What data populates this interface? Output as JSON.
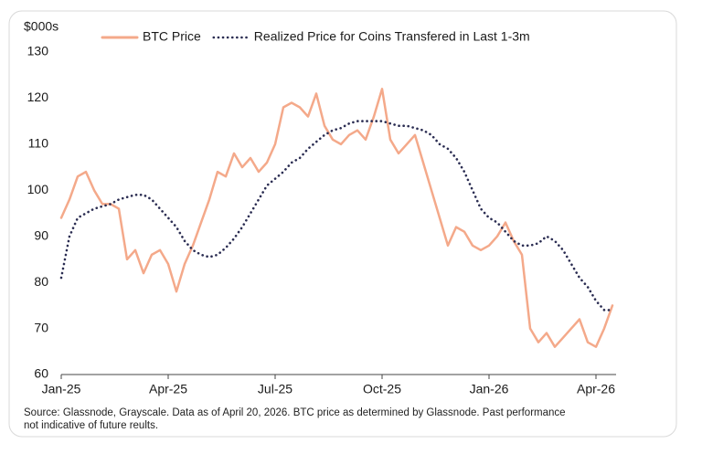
{
  "chart_data": {
    "type": "line",
    "y_label": "$000s",
    "source": [
      "Source: Glassnode, Grayscale. Data as of April 20, 2026. BTC price as determined by Glassnode. Past performance",
      "not indicative of future reults."
    ],
    "categories": [
      "Jan-25",
      null,
      null,
      null,
      null,
      null,
      null,
      null,
      null,
      null,
      null,
      null,
      null,
      "Apr-25",
      null,
      null,
      null,
      null,
      null,
      null,
      null,
      null,
      null,
      null,
      null,
      null,
      "Jul-25",
      null,
      null,
      null,
      null,
      null,
      null,
      null,
      null,
      null,
      null,
      null,
      null,
      "Oct-25",
      null,
      null,
      null,
      null,
      null,
      null,
      null,
      null,
      null,
      null,
      null,
      null,
      "Jan-26",
      null,
      null,
      null,
      null,
      null,
      null,
      null,
      null,
      null,
      null,
      null,
      null,
      "Apr-26",
      null,
      null
    ],
    "series": [
      {
        "name": "BTC Price",
        "color": "#f4a98a",
        "style": "solid",
        "values": [
          94,
          98,
          103,
          104,
          100,
          97,
          97,
          96,
          85,
          87,
          82,
          86,
          87,
          84,
          78,
          84,
          88,
          93,
          98,
          104,
          103,
          108,
          105,
          107,
          104,
          106,
          110,
          118,
          119,
          118,
          116,
          121,
          114,
          111,
          110,
          112,
          113,
          111,
          116,
          122,
          111,
          108,
          110,
          112,
          106,
          100,
          94,
          88,
          92,
          91,
          88,
          87,
          88,
          90,
          93,
          89,
          86,
          70,
          67,
          69,
          66,
          68,
          70,
          72,
          67,
          66,
          70,
          75
        ]
      },
      {
        "name": "Realized Price for Coins Transfered in Last 1-3m",
        "color": "#2b2d52",
        "style": "dotted",
        "values": [
          81,
          90,
          94,
          95,
          96,
          96.5,
          97,
          98,
          98.5,
          99,
          99,
          98,
          96,
          94,
          92,
          89,
          87,
          86,
          85.5,
          86,
          87.5,
          89.5,
          92,
          95,
          98,
          101,
          102.5,
          104,
          106,
          107,
          109,
          110.5,
          112,
          113,
          113.5,
          114.5,
          115,
          115,
          115,
          115,
          114.5,
          114,
          114,
          113.5,
          113,
          112,
          110,
          109,
          107,
          104,
          100,
          96,
          94,
          93,
          91,
          89,
          88,
          88,
          88.5,
          90,
          89,
          87,
          84,
          81,
          79,
          76,
          74,
          74
        ]
      }
    ],
    "ylim": [
      60,
      130
    ],
    "yticks": [
      60,
      70,
      80,
      90,
      100,
      110,
      120,
      130
    ],
    "grid": false,
    "legend": "top"
  }
}
